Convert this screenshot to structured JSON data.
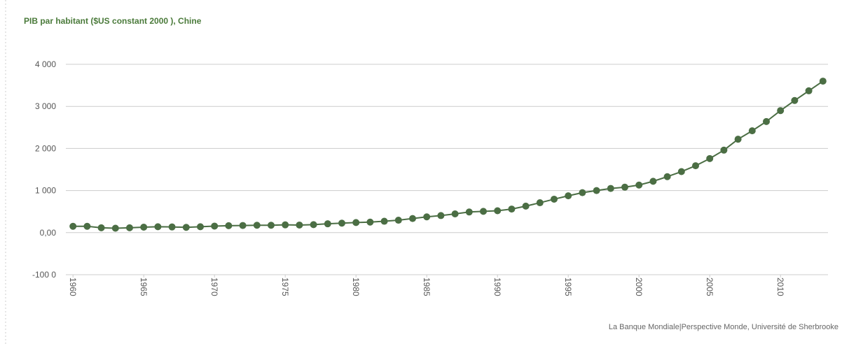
{
  "chart_data": {
    "type": "line",
    "title": "PIB par habitant ($US constant 2000 ), Chine",
    "source": "La Banque Mondiale|Perspective Monde, Université de Sherbrooke",
    "x": [
      1960,
      1961,
      1962,
      1963,
      1964,
      1965,
      1966,
      1967,
      1968,
      1969,
      1970,
      1971,
      1972,
      1973,
      1974,
      1975,
      1976,
      1977,
      1978,
      1979,
      1980,
      1981,
      1982,
      1983,
      1984,
      1985,
      1986,
      1987,
      1988,
      1989,
      1990,
      1991,
      1992,
      1993,
      1994,
      1995,
      1996,
      1997,
      1998,
      1999,
      2000,
      2001,
      2002,
      2003,
      2004,
      2005,
      2006,
      2007,
      2008,
      2009,
      2010,
      2011,
      2012,
      2013
    ],
    "series": [
      {
        "name": "Chine",
        "color": "#4b6e44",
        "values": [
          150,
          150,
          115,
          105,
          115,
          130,
          140,
          135,
          125,
          140,
          155,
          165,
          170,
          175,
          175,
          185,
          180,
          190,
          210,
          225,
          240,
          250,
          270,
          295,
          335,
          375,
          405,
          445,
          490,
          505,
          520,
          560,
          630,
          710,
          795,
          875,
          950,
          1000,
          1050,
          1080,
          1130,
          1220,
          1330,
          1450,
          1590,
          1760,
          1960,
          2220,
          2420,
          2640,
          2900,
          3140,
          3370,
          3600
        ]
      }
    ],
    "xlim": [
      1959,
      2014
    ],
    "xticks": [
      1960,
      1965,
      1970,
      1975,
      1980,
      1985,
      1990,
      1995,
      2000,
      2005,
      2010
    ],
    "ylim": [
      -1000,
      4000
    ],
    "yticks": [
      {
        "value": -1000,
        "label": "-100 0"
      },
      {
        "value": 0,
        "label": "0,00"
      },
      {
        "value": 1000,
        "label": "1 000"
      },
      {
        "value": 2000,
        "label": "2 000"
      },
      {
        "value": 3000,
        "label": "3 000"
      },
      {
        "value": 4000,
        "label": "4 000"
      }
    ],
    "grid": true
  }
}
